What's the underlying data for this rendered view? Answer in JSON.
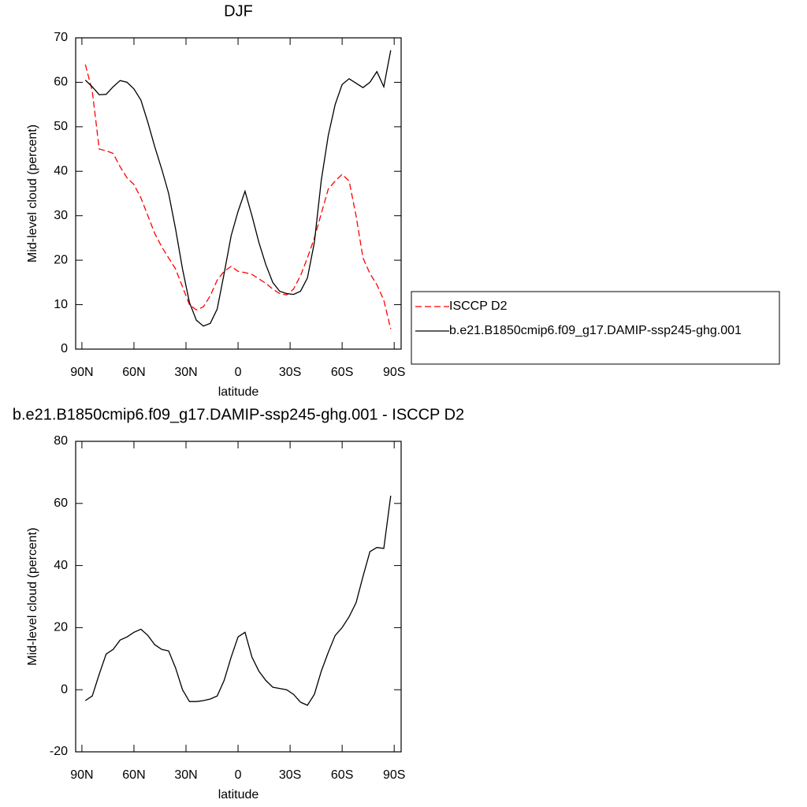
{
  "chart_data": [
    {
      "type": "line",
      "title": "DJF",
      "x_label": "latitude",
      "y_label": "Mid-level cloud (percent)",
      "xlim": [
        93.6,
        -94
      ],
      "ylim": [
        0,
        70
      ],
      "xticks": [
        {
          "value": 90,
          "label": "90N"
        },
        {
          "value": 60,
          "label": "60N"
        },
        {
          "value": 30,
          "label": "30N"
        },
        0,
        {
          "value": -30,
          "label": "30S"
        },
        {
          "value": -60,
          "label": "60S"
        },
        {
          "value": -90,
          "label": "90S"
        }
      ],
      "yticks": [
        0,
        10,
        20,
        30,
        40,
        50,
        60,
        70
      ],
      "legend": "right",
      "x": [
        88,
        84,
        80,
        76,
        72,
        68,
        64,
        60,
        56,
        52,
        48,
        44,
        40,
        36,
        32,
        28,
        24,
        20,
        16,
        12,
        8,
        4,
        0,
        -4,
        -8,
        -12,
        -16,
        -20,
        -24,
        -28,
        -32,
        -36,
        -40,
        -44,
        -48,
        -52,
        -56,
        -60,
        -64,
        -68,
        -72,
        -76,
        -80,
        -84,
        -88
      ],
      "series": [
        {
          "name": "ISCCP D2",
          "color": "#ff0000",
          "dashed": true,
          "values": [
            64,
            58,
            45,
            44.6,
            44,
            41,
            38.5,
            37,
            34,
            30,
            26,
            23,
            20.5,
            18,
            14,
            10,
            8.8,
            9.5,
            12,
            15.5,
            17.5,
            18.6,
            17.5,
            17.2,
            16.8,
            15.8,
            14.8,
            13.5,
            12.5,
            12.2,
            13.5,
            16.5,
            20.5,
            25,
            30.5,
            36,
            37.8,
            39.3,
            37.8,
            30,
            20.5,
            17,
            14.5,
            11,
            4.5
          ]
        },
        {
          "name": "b.e21.B1850cmip6.f09_g17.DAMIP-ssp245-ghg.001",
          "color": "#000000",
          "dashed": false,
          "values": [
            60.5,
            59,
            57.2,
            57.3,
            59,
            60.4,
            60,
            58.5,
            56,
            51,
            45.5,
            40.5,
            35,
            27,
            18,
            10.5,
            6.5,
            5.2,
            5.8,
            9,
            17,
            25.5,
            31,
            35.5,
            30,
            24,
            19,
            15,
            13,
            12.5,
            12.3,
            13,
            16,
            24,
            38,
            48,
            55,
            59.5,
            60.8,
            59.8,
            58.8,
            60,
            62.4,
            59,
            67.2
          ]
        }
      ]
    },
    {
      "type": "line",
      "title": "b.e21.B1850cmip6.f09_g17.DAMIP-ssp245-ghg.001 - ISCCP D2",
      "x_label": "latitude",
      "y_label": "Mid-level cloud (percent)",
      "xlim": [
        93.6,
        -94
      ],
      "ylim": [
        -20,
        80
      ],
      "xticks": [
        {
          "value": 90,
          "label": "90N"
        },
        {
          "value": 60,
          "label": "60N"
        },
        {
          "value": 30,
          "label": "30N"
        },
        0,
        {
          "value": -30,
          "label": "30S"
        },
        {
          "value": -60,
          "label": "60S"
        },
        {
          "value": -90,
          "label": "90S"
        }
      ],
      "yticks": [
        -20,
        0,
        20,
        40,
        60,
        80
      ],
      "x": [
        88,
        84,
        80,
        76,
        72,
        68,
        64,
        60,
        56,
        52,
        48,
        44,
        40,
        36,
        32,
        28,
        24,
        20,
        16,
        12,
        8,
        4,
        0,
        -4,
        -8,
        -12,
        -16,
        -20,
        -24,
        -28,
        -32,
        -36,
        -40,
        -44,
        -48,
        -52,
        -56,
        -60,
        -64,
        -68,
        -72,
        -76,
        -80,
        -84,
        -88
      ],
      "series": [
        {
          "color": "#000000",
          "dashed": false,
          "values": [
            -3.5,
            -2,
            5,
            11.5,
            13,
            16,
            17,
            18.5,
            19.5,
            17.5,
            14.5,
            13,
            12.5,
            7,
            0,
            -3.8,
            -3.8,
            -3.5,
            -3,
            -2,
            3,
            10.5,
            17,
            18.5,
            10.5,
            6,
            3,
            0.8,
            0.4,
            0,
            -1.5,
            -4,
            -5,
            -1.5,
            6,
            12,
            17.5,
            20,
            23.5,
            28,
            36.5,
            44.5,
            45.8,
            45.5,
            62.5
          ]
        }
      ]
    }
  ]
}
